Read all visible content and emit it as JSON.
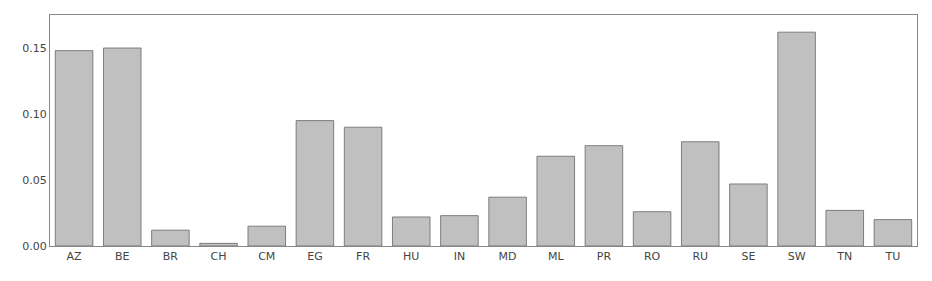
{
  "chart_data": {
    "type": "bar",
    "categories": [
      "AZ",
      "BE",
      "BR",
      "CH",
      "CM",
      "EG",
      "FR",
      "HU",
      "IN",
      "MD",
      "ML",
      "PR",
      "RO",
      "RU",
      "SE",
      "SW",
      "TN",
      "TU"
    ],
    "values": [
      0.148,
      0.15,
      0.012,
      0.002,
      0.015,
      0.095,
      0.09,
      0.022,
      0.023,
      0.037,
      0.068,
      0.076,
      0.026,
      0.079,
      0.047,
      0.162,
      0.027,
      0.02
    ],
    "color": "#c0c0c0",
    "ylim": [
      0,
      0.175
    ],
    "yticks": [
      {
        "value": 0,
        "label": "0.00"
      },
      0.05,
      {
        "value": 0.1,
        "label": "0.10"
      },
      0.15
    ],
    "grid": false
  }
}
